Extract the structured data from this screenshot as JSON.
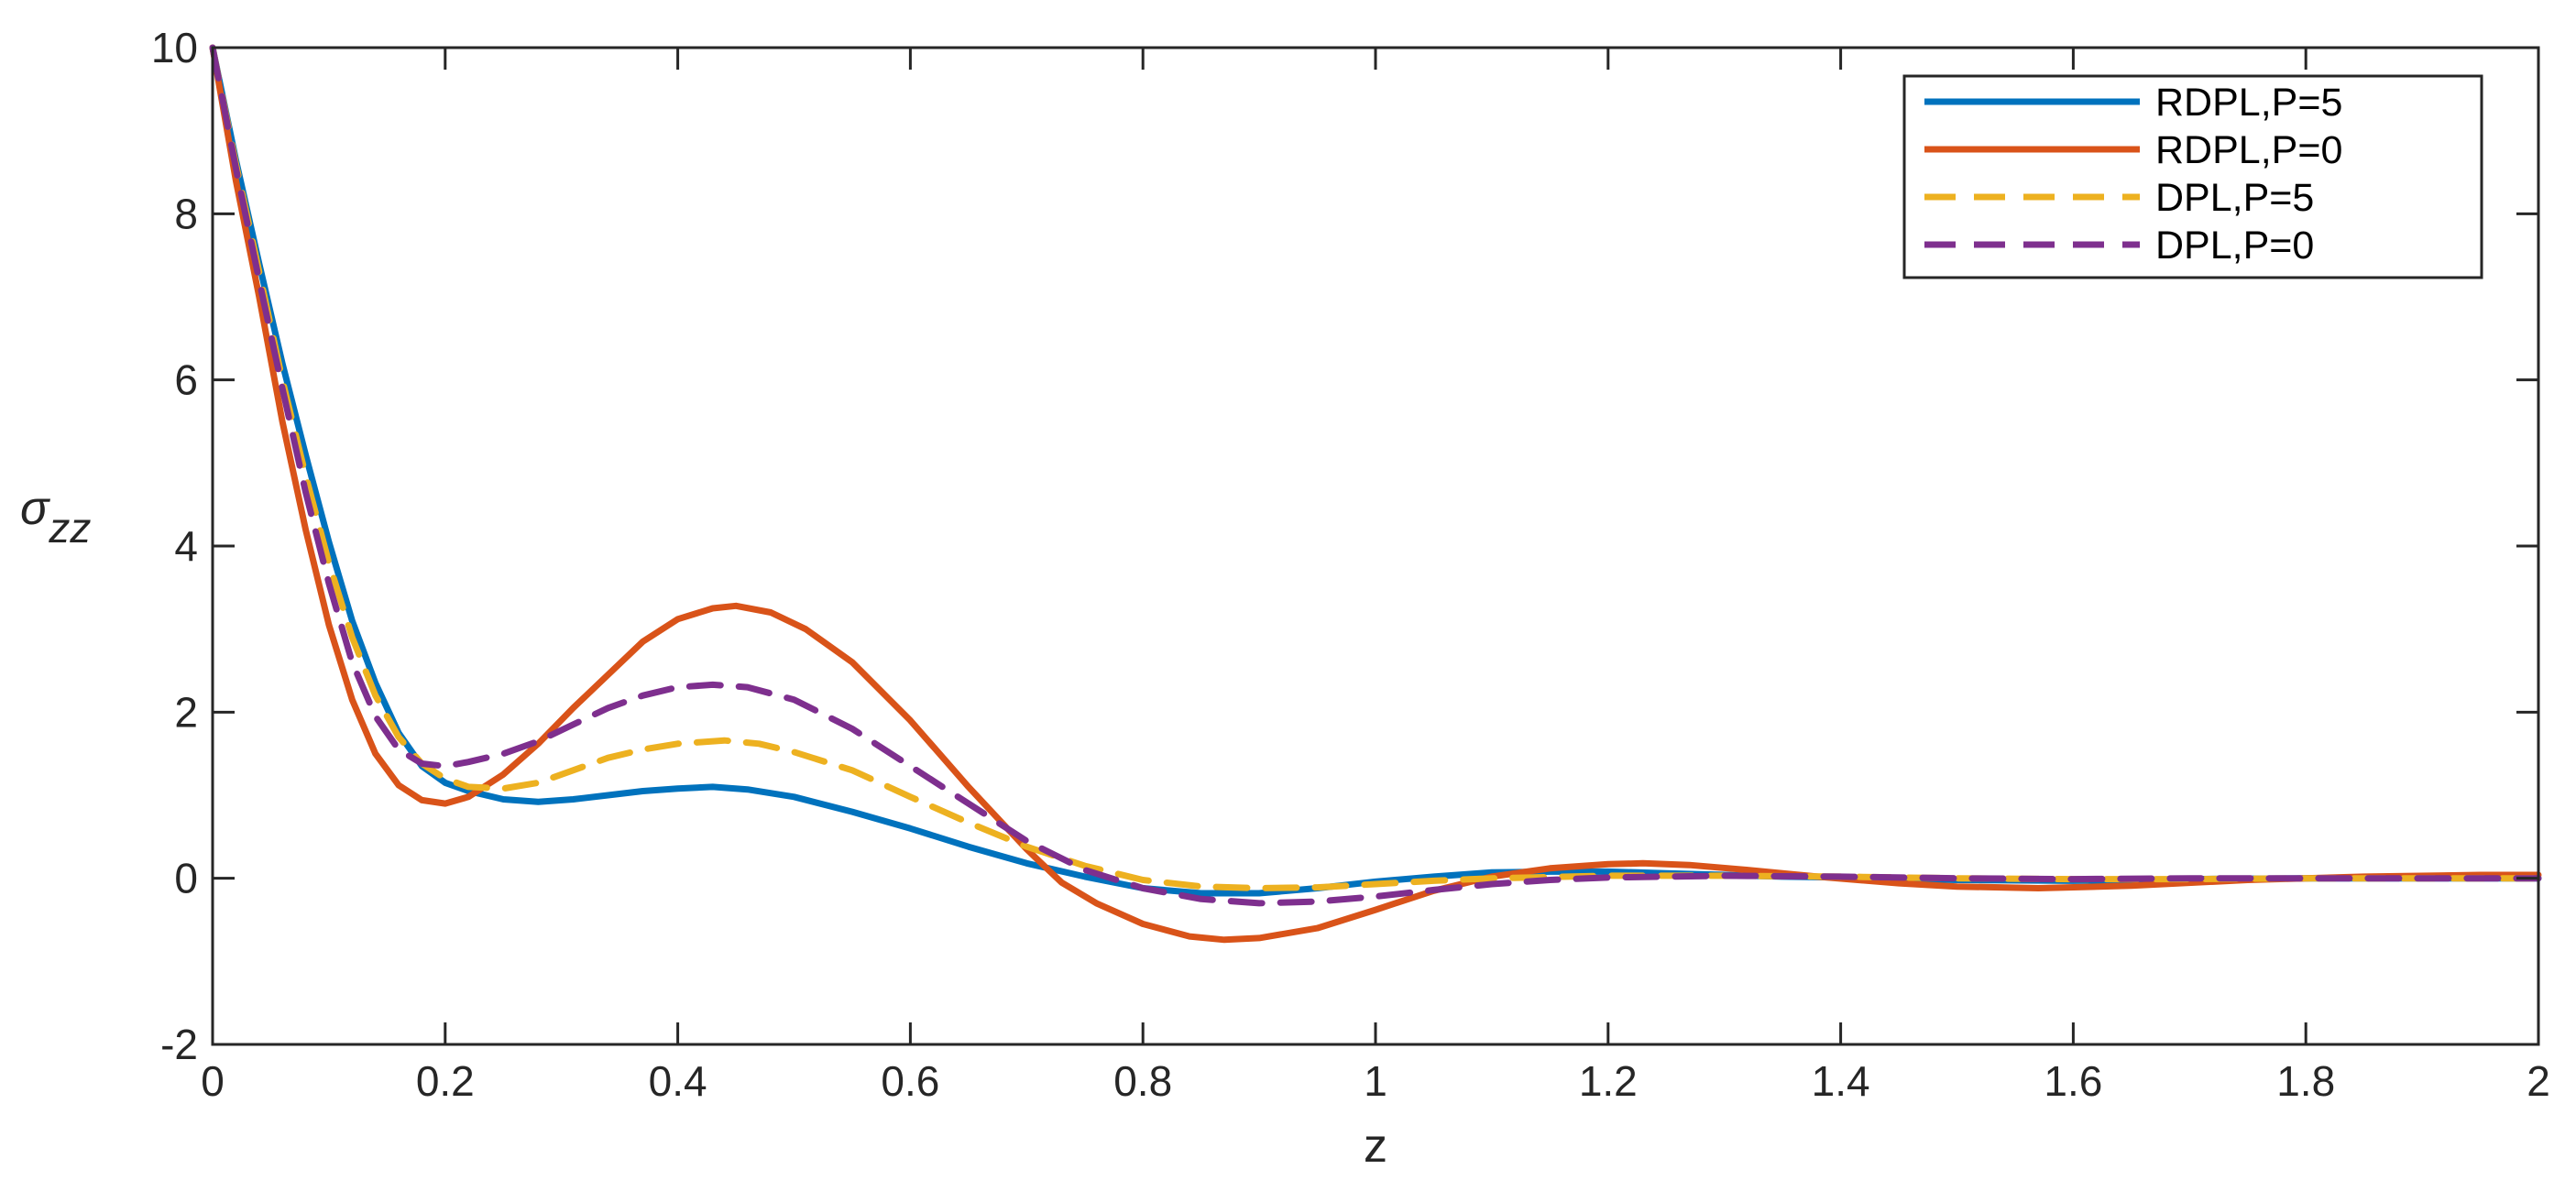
{
  "chart_data": {
    "type": "line",
    "title": "",
    "xlabel": "z",
    "ylabel": "σzz",
    "xlim": [
      0,
      2
    ],
    "ylim": [
      -2,
      10
    ],
    "xticks": [
      "0",
      "0.2",
      "0.4",
      "0.6",
      "0.8",
      "1",
      "1.2",
      "1.4",
      "1.6",
      "1.8",
      "2"
    ],
    "yticks": [
      "-2",
      "0",
      "2",
      "4",
      "6",
      "8",
      "10"
    ],
    "grid": false,
    "legend_position": "top-right",
    "series": [
      {
        "name": "RDPL,P=5",
        "color": "#0072BD",
        "dash": "solid",
        "points": [
          [
            0,
            10
          ],
          [
            0.02,
            8.65
          ],
          [
            0.04,
            7.4
          ],
          [
            0.06,
            6.2
          ],
          [
            0.08,
            5.1
          ],
          [
            0.1,
            4.05
          ],
          [
            0.12,
            3.1
          ],
          [
            0.14,
            2.35
          ],
          [
            0.16,
            1.75
          ],
          [
            0.18,
            1.35
          ],
          [
            0.2,
            1.15
          ],
          [
            0.22,
            1.05
          ],
          [
            0.25,
            0.95
          ],
          [
            0.28,
            0.92
          ],
          [
            0.31,
            0.95
          ],
          [
            0.34,
            1.0
          ],
          [
            0.37,
            1.05
          ],
          [
            0.4,
            1.08
          ],
          [
            0.43,
            1.1
          ],
          [
            0.46,
            1.07
          ],
          [
            0.5,
            0.98
          ],
          [
            0.55,
            0.8
          ],
          [
            0.6,
            0.6
          ],
          [
            0.65,
            0.38
          ],
          [
            0.7,
            0.18
          ],
          [
            0.75,
            0.02
          ],
          [
            0.8,
            -0.12
          ],
          [
            0.85,
            -0.18
          ],
          [
            0.9,
            -0.18
          ],
          [
            0.95,
            -0.12
          ],
          [
            1.0,
            -0.04
          ],
          [
            1.05,
            0.02
          ],
          [
            1.1,
            0.07
          ],
          [
            1.15,
            0.08
          ],
          [
            1.2,
            0.08
          ],
          [
            1.25,
            0.06
          ],
          [
            1.3,
            0.04
          ],
          [
            1.35,
            0.02
          ],
          [
            1.4,
            0.01
          ],
          [
            1.5,
            -0.02
          ],
          [
            1.6,
            -0.03
          ],
          [
            1.7,
            -0.01
          ],
          [
            1.8,
            0.0
          ],
          [
            1.9,
            0.0
          ],
          [
            2.0,
            0.0
          ]
        ]
      },
      {
        "name": "RDPL,P=0",
        "color": "#D95319",
        "dash": "solid",
        "points": [
          [
            0,
            10
          ],
          [
            0.02,
            8.4
          ],
          [
            0.04,
            7.0
          ],
          [
            0.06,
            5.5
          ],
          [
            0.08,
            4.2
          ],
          [
            0.1,
            3.05
          ],
          [
            0.12,
            2.15
          ],
          [
            0.14,
            1.5
          ],
          [
            0.16,
            1.12
          ],
          [
            0.18,
            0.94
          ],
          [
            0.2,
            0.9
          ],
          [
            0.22,
            0.98
          ],
          [
            0.25,
            1.25
          ],
          [
            0.28,
            1.62
          ],
          [
            0.31,
            2.05
          ],
          [
            0.34,
            2.45
          ],
          [
            0.37,
            2.85
          ],
          [
            0.4,
            3.12
          ],
          [
            0.43,
            3.25
          ],
          [
            0.45,
            3.28
          ],
          [
            0.48,
            3.2
          ],
          [
            0.51,
            3.0
          ],
          [
            0.55,
            2.6
          ],
          [
            0.6,
            1.9
          ],
          [
            0.65,
            1.1
          ],
          [
            0.7,
            0.35
          ],
          [
            0.73,
            -0.05
          ],
          [
            0.76,
            -0.3
          ],
          [
            0.8,
            -0.55
          ],
          [
            0.84,
            -0.7
          ],
          [
            0.87,
            -0.74
          ],
          [
            0.9,
            -0.72
          ],
          [
            0.95,
            -0.6
          ],
          [
            1.0,
            -0.38
          ],
          [
            1.05,
            -0.15
          ],
          [
            1.1,
            0.02
          ],
          [
            1.15,
            0.12
          ],
          [
            1.2,
            0.17
          ],
          [
            1.23,
            0.18
          ],
          [
            1.27,
            0.16
          ],
          [
            1.32,
            0.1
          ],
          [
            1.38,
            0.02
          ],
          [
            1.45,
            -0.06
          ],
          [
            1.5,
            -0.1
          ],
          [
            1.57,
            -0.12
          ],
          [
            1.65,
            -0.09
          ],
          [
            1.75,
            -0.02
          ],
          [
            1.85,
            0.02
          ],
          [
            1.95,
            0.04
          ],
          [
            2.0,
            0.04
          ]
        ]
      },
      {
        "name": "DPL,P=5",
        "color": "#EDB120",
        "dash": "dashed",
        "points": [
          [
            0,
            10
          ],
          [
            0.02,
            8.6
          ],
          [
            0.04,
            7.3
          ],
          [
            0.06,
            6.0
          ],
          [
            0.08,
            4.85
          ],
          [
            0.1,
            3.8
          ],
          [
            0.12,
            2.9
          ],
          [
            0.14,
            2.2
          ],
          [
            0.16,
            1.7
          ],
          [
            0.18,
            1.38
          ],
          [
            0.2,
            1.2
          ],
          [
            0.22,
            1.1
          ],
          [
            0.25,
            1.08
          ],
          [
            0.28,
            1.15
          ],
          [
            0.31,
            1.3
          ],
          [
            0.34,
            1.45
          ],
          [
            0.37,
            1.55
          ],
          [
            0.4,
            1.62
          ],
          [
            0.44,
            1.66
          ],
          [
            0.47,
            1.62
          ],
          [
            0.5,
            1.52
          ],
          [
            0.55,
            1.3
          ],
          [
            0.6,
            0.98
          ],
          [
            0.65,
            0.67
          ],
          [
            0.7,
            0.38
          ],
          [
            0.75,
            0.15
          ],
          [
            0.8,
            -0.02
          ],
          [
            0.85,
            -0.1
          ],
          [
            0.9,
            -0.12
          ],
          [
            0.95,
            -0.11
          ],
          [
            1.0,
            -0.07
          ],
          [
            1.05,
            -0.03
          ],
          [
            1.1,
            0.0
          ],
          [
            1.2,
            0.03
          ],
          [
            1.3,
            0.03
          ],
          [
            1.4,
            0.02
          ],
          [
            1.5,
            0.0
          ],
          [
            1.6,
            -0.01
          ],
          [
            1.7,
            -0.01
          ],
          [
            1.8,
            0.0
          ],
          [
            1.9,
            0.0
          ],
          [
            2.0,
            0.0
          ]
        ]
      },
      {
        "name": "DPL,P=0",
        "color": "#7E2F8E",
        "dash": "dashed",
        "points": [
          [
            0,
            10
          ],
          [
            0.02,
            8.55
          ],
          [
            0.04,
            7.2
          ],
          [
            0.06,
            5.9
          ],
          [
            0.08,
            4.65
          ],
          [
            0.1,
            3.55
          ],
          [
            0.12,
            2.6
          ],
          [
            0.14,
            1.95
          ],
          [
            0.16,
            1.55
          ],
          [
            0.18,
            1.38
          ],
          [
            0.2,
            1.35
          ],
          [
            0.22,
            1.4
          ],
          [
            0.25,
            1.5
          ],
          [
            0.28,
            1.65
          ],
          [
            0.31,
            1.85
          ],
          [
            0.34,
            2.05
          ],
          [
            0.37,
            2.2
          ],
          [
            0.4,
            2.3
          ],
          [
            0.43,
            2.33
          ],
          [
            0.46,
            2.3
          ],
          [
            0.5,
            2.15
          ],
          [
            0.55,
            1.8
          ],
          [
            0.6,
            1.35
          ],
          [
            0.65,
            0.9
          ],
          [
            0.7,
            0.45
          ],
          [
            0.75,
            0.1
          ],
          [
            0.8,
            -0.12
          ],
          [
            0.85,
            -0.25
          ],
          [
            0.9,
            -0.3
          ],
          [
            0.95,
            -0.28
          ],
          [
            1.0,
            -0.22
          ],
          [
            1.05,
            -0.14
          ],
          [
            1.1,
            -0.07
          ],
          [
            1.15,
            -0.02
          ],
          [
            1.2,
            0.01
          ],
          [
            1.3,
            0.03
          ],
          [
            1.4,
            0.02
          ],
          [
            1.5,
            0.0
          ],
          [
            1.6,
            -0.01
          ],
          [
            1.7,
            0.0
          ],
          [
            1.8,
            0.0
          ],
          [
            1.9,
            0.0
          ],
          [
            2.0,
            0.0
          ]
        ]
      }
    ]
  }
}
